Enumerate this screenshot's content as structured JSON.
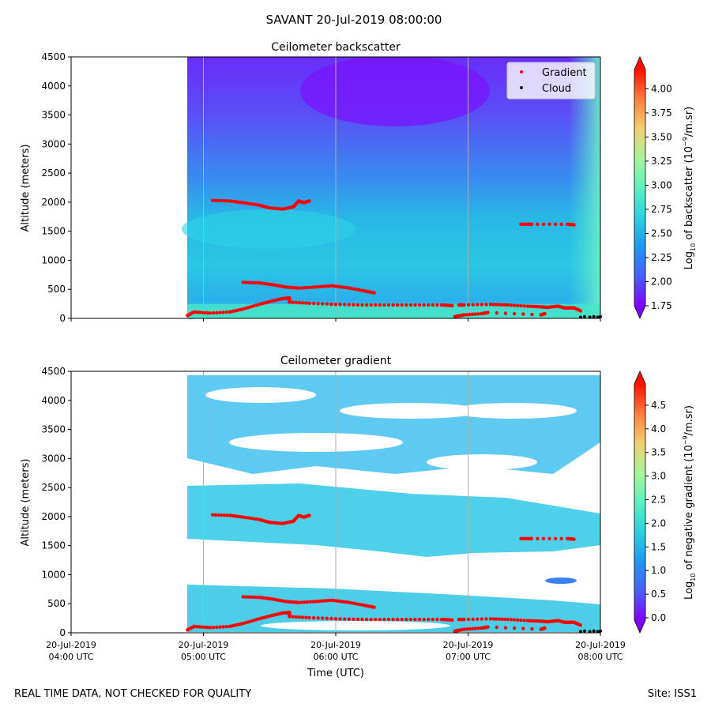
{
  "suptitle": "SAVANT 20-Jul-2019 08:00:00",
  "footer_left": "REAL TIME DATA, NOT CHECKED FOR QUALITY",
  "footer_right": "Site: ISS1",
  "chart_data": [
    {
      "type": "heatmap",
      "title": "Ceilometer backscatter",
      "ylabel": "Altitude (meters)",
      "xlabel": "",
      "xlim_hours_utc": [
        4.0,
        8.0
      ],
      "ylim": [
        0,
        4500
      ],
      "yticks": [
        0,
        500,
        1000,
        1500,
        2000,
        2500,
        3000,
        3500,
        4000,
        4500
      ],
      "xticks": [
        {
          "hour": 4,
          "line1": "20-Jul-2019",
          "line2": "04:00 UTC"
        },
        {
          "hour": 5,
          "line1": "20-Jul-2019",
          "line2": "05:00 UTC"
        },
        {
          "hour": 6,
          "line1": "20-Jul-2019",
          "line2": "06:00 UTC"
        },
        {
          "hour": 7,
          "line1": "20-Jul-2019",
          "line2": "07:00 UTC"
        },
        {
          "hour": 8,
          "line1": "20-Jul-2019",
          "line2": "08:00 UTC"
        }
      ],
      "xtick_labels_visible": false,
      "data_start_hour": 4.88,
      "legend": {
        "placement": "top-right",
        "entries": [
          {
            "label": "Gradient",
            "color": "#ff0000"
          },
          {
            "label": "Cloud",
            "color": "#000000"
          }
        ]
      },
      "colorbar": {
        "label_pre": "Log",
        "label_sub": "10",
        "label_mid": " of backscatter (10",
        "label_sup": "−9",
        "label_post": "/m.sr)",
        "range": [
          1.75,
          4.2
        ],
        "ticks": [
          "1.75",
          "2.00",
          "2.25",
          "2.50",
          "2.75",
          "3.00",
          "3.25",
          "3.50",
          "3.75",
          "4.00"
        ],
        "extend": "both"
      },
      "field": {
        "description_levels": "purple high aloft (~1.8-2.0), blue/cyan mid (~2.2-2.5), cyan near surface (~2.6)"
      },
      "gradient_points": [
        {
          "segment": "upper",
          "points": [
            [
              5.07,
              2030
            ],
            [
              5.2,
              2020
            ],
            [
              5.3,
              1990
            ],
            [
              5.42,
              1950
            ],
            [
              5.5,
              1900
            ],
            [
              5.6,
              1880
            ],
            [
              5.68,
              1920
            ],
            [
              5.72,
              2020
            ],
            [
              5.76,
              1990
            ],
            [
              5.8,
              2020
            ]
          ]
        },
        {
          "segment": "middle",
          "points": [
            [
              5.3,
              620
            ],
            [
              5.42,
              610
            ],
            [
              5.52,
              580
            ],
            [
              5.62,
              540
            ],
            [
              5.72,
              520
            ],
            [
              5.85,
              540
            ],
            [
              5.97,
              560
            ],
            [
              6.08,
              530
            ],
            [
              6.2,
              480
            ],
            [
              6.29,
              440
            ]
          ]
        },
        {
          "segment": "lower",
          "points": [
            [
              4.88,
              50
            ],
            [
              4.93,
              110
            ],
            [
              5.05,
              90
            ],
            [
              5.2,
              110
            ],
            [
              5.3,
              160
            ],
            [
              5.42,
              240
            ],
            [
              5.52,
              300
            ],
            [
              5.6,
              340
            ],
            [
              5.65,
              350
            ],
            [
              5.65,
              280
            ],
            [
              5.8,
              260
            ],
            [
              6.0,
              240
            ],
            [
              6.2,
              230
            ],
            [
              6.4,
              230
            ],
            [
              6.6,
              230
            ],
            [
              6.8,
              230
            ],
            [
              6.88,
              220
            ]
          ]
        },
        {
          "segment": "late",
          "points": [
            [
              6.93,
              230
            ],
            [
              6.97,
              230
            ],
            [
              7.17,
              240
            ],
            [
              7.3,
              230
            ],
            [
              7.45,
              210
            ],
            [
              7.55,
              200
            ],
            [
              7.6,
              190
            ],
            [
              7.68,
              210
            ],
            [
              7.73,
              180
            ],
            [
              7.8,
              180
            ],
            [
              7.85,
              130
            ]
          ]
        },
        {
          "segment": "lowest",
          "points": [
            [
              6.9,
              30
            ],
            [
              6.97,
              60
            ],
            [
              7.1,
              80
            ],
            [
              7.15,
              100
            ],
            [
              7.55,
              60
            ],
            [
              7.58,
              80
            ]
          ]
        },
        {
          "segment": "aloft",
          "points": [
            [
              7.4,
              1620
            ],
            [
              7.48,
              1620
            ],
            [
              7.75,
              1620
            ],
            [
              7.8,
              1610
            ]
          ]
        }
      ],
      "cloud_points": [
        [
          7.85,
          20
        ],
        [
          7.88,
          30
        ],
        [
          7.92,
          20
        ],
        [
          7.95,
          30
        ],
        [
          7.98,
          20
        ],
        [
          8.0,
          30
        ]
      ]
    },
    {
      "type": "heatmap",
      "title": "Ceilometer gradient",
      "ylabel": "Altitude (meters)",
      "xlabel": "Time (UTC)",
      "xlim_hours_utc": [
        4.0,
        8.0
      ],
      "ylim": [
        0,
        4500
      ],
      "yticks": [
        0,
        500,
        1000,
        1500,
        2000,
        2500,
        3000,
        3500,
        4000,
        4500
      ],
      "xticks": [
        {
          "hour": 4,
          "line1": "20-Jul-2019",
          "line2": "04:00 UTC"
        },
        {
          "hour": 5,
          "line1": "20-Jul-2019",
          "line2": "05:00 UTC"
        },
        {
          "hour": 6,
          "line1": "20-Jul-2019",
          "line2": "06:00 UTC"
        },
        {
          "hour": 7,
          "line1": "20-Jul-2019",
          "line2": "07:00 UTC"
        },
        {
          "hour": 8,
          "line1": "20-Jul-2019",
          "line2": "08:00 UTC"
        }
      ],
      "xtick_labels_visible": true,
      "data_start_hour": 4.88,
      "colorbar": {
        "label_pre": "Log",
        "label_sub": "10",
        "label_mid": " of negative gradient (10",
        "label_sup": "−9",
        "label_post": "/m.sr)",
        "range": [
          -0.05,
          4.95
        ],
        "ticks": [
          "0.0",
          "0.5",
          "1.0",
          "1.5",
          "2.0",
          "2.5",
          "3.0",
          "3.5",
          "4.0",
          "4.5"
        ],
        "extend": "both"
      },
      "layers": [
        {
          "level": 1.4,
          "altitude_band": [
            1500,
            2450
          ]
        },
        {
          "level": 1.3,
          "altitude_band": [
            0,
            800
          ]
        },
        {
          "level": 1.2,
          "altitude_band": [
            2900,
            4500
          ]
        }
      ],
      "gradient_points_same_as_panel": 0,
      "cloud_points_same_as_panel": 0
    }
  ]
}
